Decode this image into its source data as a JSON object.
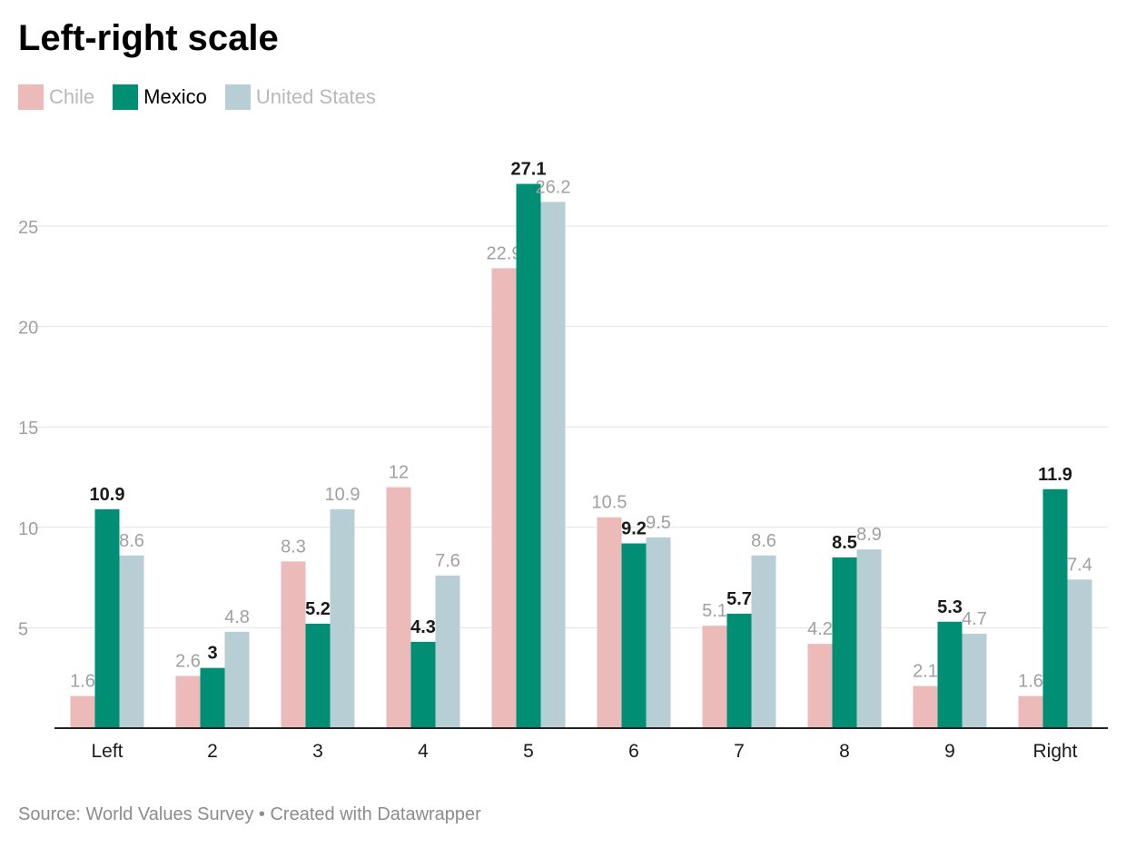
{
  "chart_data": {
    "type": "bar",
    "title": "Left-right scale",
    "categories": [
      "Left",
      "2",
      "3",
      "4",
      "5",
      "6",
      "7",
      "8",
      "9",
      "Right"
    ],
    "series": [
      {
        "name": "Chile",
        "color": "#ebbab9",
        "label_color": "#a0a0a0",
        "highlight": false,
        "values": [
          1.6,
          2.6,
          8.3,
          12,
          22.9,
          10.5,
          5.1,
          4.2,
          2.1,
          1.6
        ]
      },
      {
        "name": "Mexico",
        "color": "#008f74",
        "label_color": "#1a1a1a",
        "highlight": true,
        "values": [
          10.9,
          3,
          5.2,
          4.3,
          27.1,
          9.2,
          5.7,
          8.5,
          5.3,
          11.9
        ]
      },
      {
        "name": "United States",
        "color": "#b8ced5",
        "label_color": "#a0a0a0",
        "highlight": false,
        "values": [
          8.6,
          4.8,
          10.9,
          7.6,
          26.2,
          9.5,
          8.6,
          8.9,
          4.7,
          7.4
        ]
      }
    ],
    "y_ticks": [
      "5",
      "10",
      "15",
      "20",
      "25"
    ],
    "ylim": [
      0,
      28
    ],
    "xlabel": "",
    "ylabel": "",
    "grid": true,
    "legend_position": "top-left"
  },
  "source": "Source: World Values Survey • Created with Datawrapper"
}
